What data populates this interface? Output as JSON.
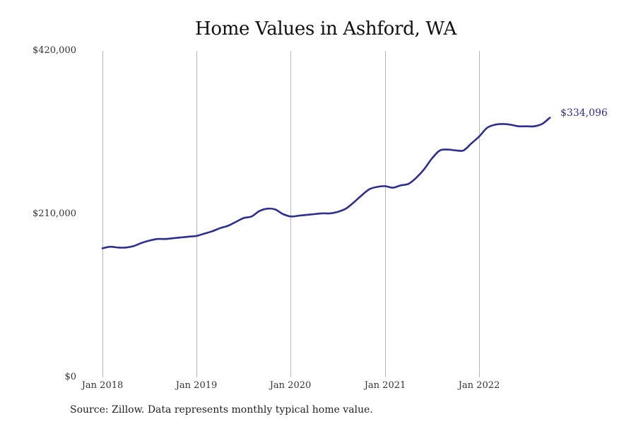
{
  "chart_data": {
    "type": "line",
    "title": "Home Values in Ashford, WA",
    "xlabel": "",
    "ylabel": "",
    "ylim": [
      0,
      420000
    ],
    "y_ticks": [
      "$0",
      "$210,000",
      "$420,000"
    ],
    "x_ticks": [
      "Jan 2018",
      "Jan 2019",
      "Jan 2020",
      "Jan 2021",
      "Jan 2022"
    ],
    "grid": "vertical lines at x ticks",
    "legend": "none",
    "line_color": "#2e2e8f",
    "end_label": "$334,096",
    "source": "Source: Zillow. Data represents monthly typical home value.",
    "series": [
      {
        "name": "Typical home value",
        "x": [
          "2018-01",
          "2018-02",
          "2018-03",
          "2018-04",
          "2018-05",
          "2018-06",
          "2018-07",
          "2018-08",
          "2018-09",
          "2018-10",
          "2018-11",
          "2018-12",
          "2019-01",
          "2019-02",
          "2019-03",
          "2019-04",
          "2019-05",
          "2019-06",
          "2019-07",
          "2019-08",
          "2019-09",
          "2019-10",
          "2019-11",
          "2019-12",
          "2020-01",
          "2020-02",
          "2020-03",
          "2020-04",
          "2020-05",
          "2020-06",
          "2020-07",
          "2020-08",
          "2020-09",
          "2020-10",
          "2020-11",
          "2020-12",
          "2021-01",
          "2021-02",
          "2021-03",
          "2021-04",
          "2021-05",
          "2021-06",
          "2021-07",
          "2021-08",
          "2021-09",
          "2021-10",
          "2021-11",
          "2021-12",
          "2022-01",
          "2022-02",
          "2022-03",
          "2022-04",
          "2022-05",
          "2022-06",
          "2022-07",
          "2022-08",
          "2022-09",
          "2022-10"
        ],
        "values": [
          166000,
          168000,
          167000,
          167000,
          169000,
          173000,
          176000,
          178000,
          178000,
          179000,
          180000,
          181000,
          182000,
          185000,
          188000,
          192000,
          195000,
          200000,
          205000,
          207000,
          214000,
          217000,
          216000,
          210000,
          207000,
          208000,
          209000,
          210000,
          211000,
          211000,
          213000,
          217000,
          225000,
          234000,
          242000,
          245000,
          246000,
          244000,
          247000,
          249000,
          257000,
          268000,
          282000,
          292000,
          293000,
          292000,
          292000,
          301000,
          310000,
          321000,
          325000,
          326000,
          325000,
          323000,
          323000,
          323000,
          326000,
          334096
        ]
      }
    ]
  }
}
